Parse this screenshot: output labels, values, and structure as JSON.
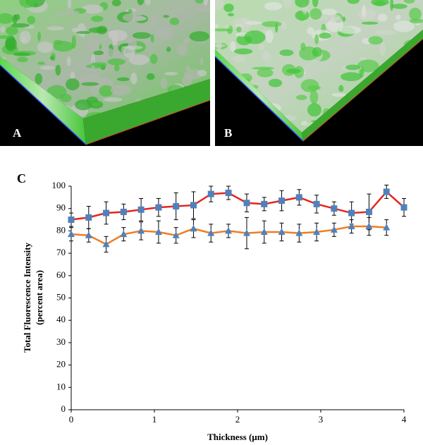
{
  "image_labels": [
    "A",
    "B"
  ],
  "chart_data": {
    "type": "line",
    "panel_label": "C",
    "x_label": "Thickness (µm)",
    "y_label": [
      "Total Fluorescence Intensity",
      "(percent area)"
    ],
    "x": [
      0,
      0.21,
      0.42,
      0.63,
      0.84,
      1.05,
      1.26,
      1.47,
      1.68,
      1.89,
      2.11,
      2.32,
      2.53,
      2.74,
      2.95,
      3.16,
      3.37,
      3.58,
      3.79,
      4.0
    ],
    "xlim": [
      0,
      4
    ],
    "xticks": [
      0,
      1,
      2,
      3,
      4
    ],
    "ylim": [
      0,
      100
    ],
    "yticks": [
      0,
      10,
      20,
      30,
      40,
      50,
      60,
      70,
      80,
      90,
      100
    ],
    "grid": false,
    "series": [
      {
        "color": "#e3261d",
        "marker": "square",
        "marker_color": "#4f81bd",
        "values": [
          85,
          86,
          88,
          88.5,
          89.5,
          90.5,
          91,
          91.5,
          96.5,
          97,
          92.5,
          92,
          93.5,
          95,
          92,
          90,
          88,
          88.5,
          97.5,
          90.5
        ],
        "errors": [
          3,
          5,
          5,
          3.5,
          5,
          4,
          6,
          6,
          3.5,
          3,
          4,
          3,
          4.5,
          3.5,
          4,
          3,
          5,
          8,
          3,
          4
        ]
      },
      {
        "color": "#ee7d22",
        "marker": "triangle",
        "marker_color": "#4f81bd",
        "values": [
          78.5,
          78,
          74,
          78.5,
          80,
          79.5,
          78,
          81,
          79,
          80,
          79,
          79.5,
          79.5,
          79,
          79.5,
          80.5,
          82,
          82,
          81.5,
          null
        ],
        "errors": [
          3,
          3,
          3.5,
          3,
          4,
          5,
          3.5,
          4,
          4,
          3,
          7,
          5,
          4,
          4,
          4,
          3,
          3,
          4,
          3.5,
          null
        ]
      }
    ]
  }
}
